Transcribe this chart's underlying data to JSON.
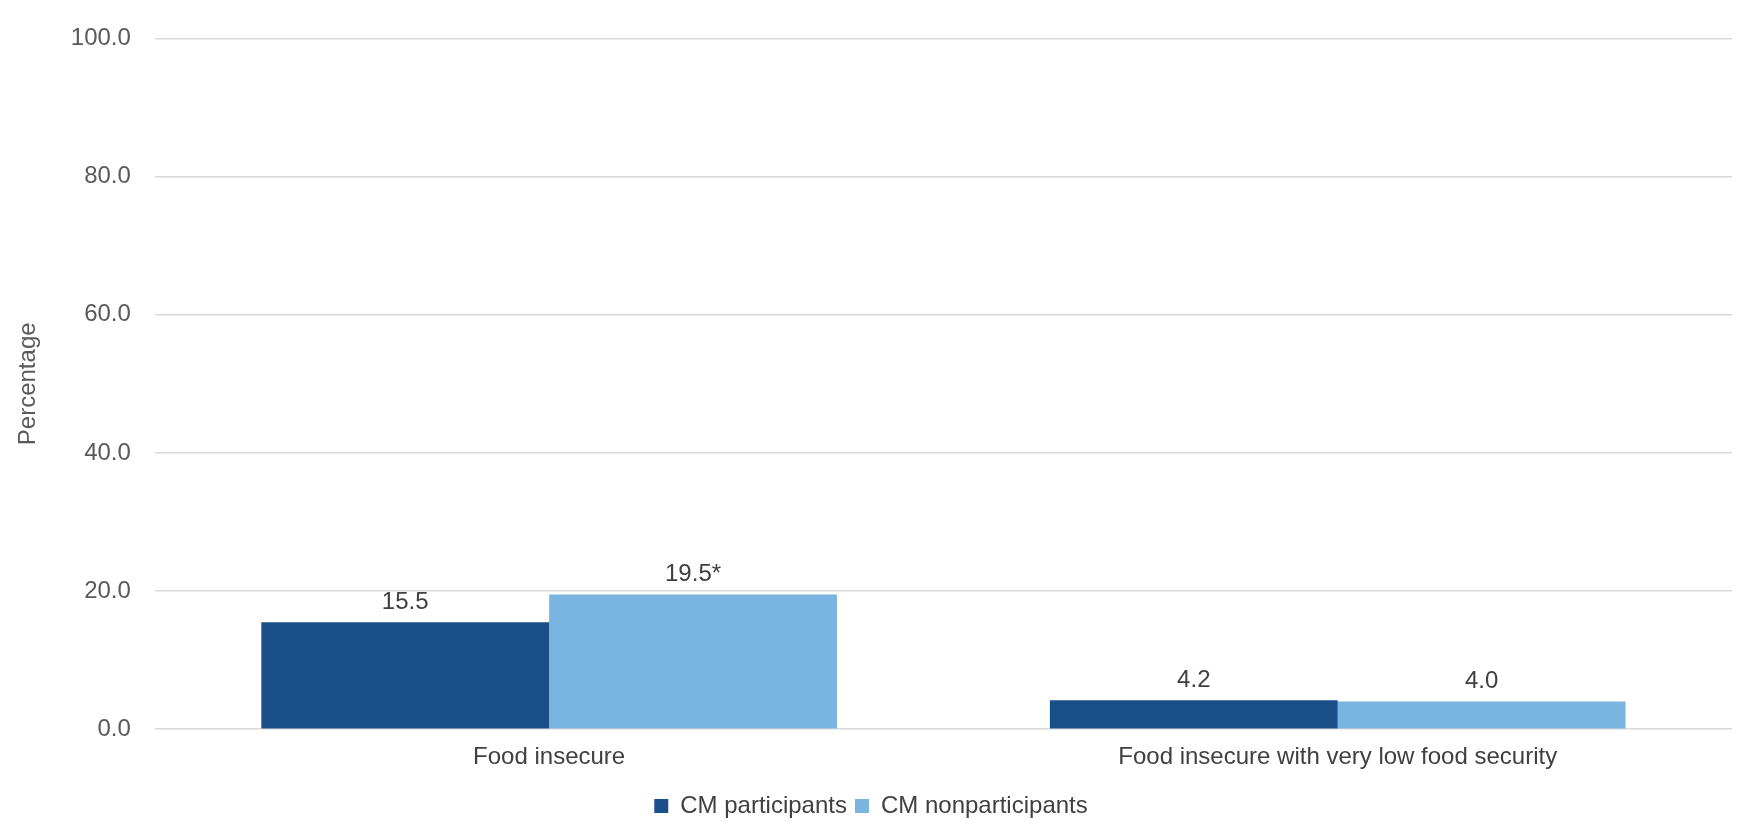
{
  "chart_data": {
    "type": "bar",
    "ylabel": "Percentage",
    "categories": [
      "Food insecure",
      "Food insecure with very low food security"
    ],
    "series": [
      {
        "name": "CM participants",
        "color": "#1b4f8a",
        "values": [
          15.5,
          4.2
        ],
        "value_labels": [
          "15.5",
          "4.2"
        ]
      },
      {
        "name": "CM nonparticipants",
        "color": "#7ab4e0",
        "values": [
          19.5,
          4.0
        ],
        "value_labels": [
          "19.5*",
          "4.0"
        ]
      }
    ],
    "ylim": [
      0,
      100
    ],
    "yticks": [
      {
        "value": 0,
        "label": "0.0"
      },
      {
        "value": 20,
        "label": "20.0"
      },
      {
        "value": 40,
        "label": "40.0"
      },
      {
        "value": 60,
        "label": "60.0"
      },
      {
        "value": 80,
        "label": "80.0"
      },
      {
        "value": 100,
        "label": "100.0"
      }
    ],
    "grid": "y",
    "legend": "bottom"
  }
}
